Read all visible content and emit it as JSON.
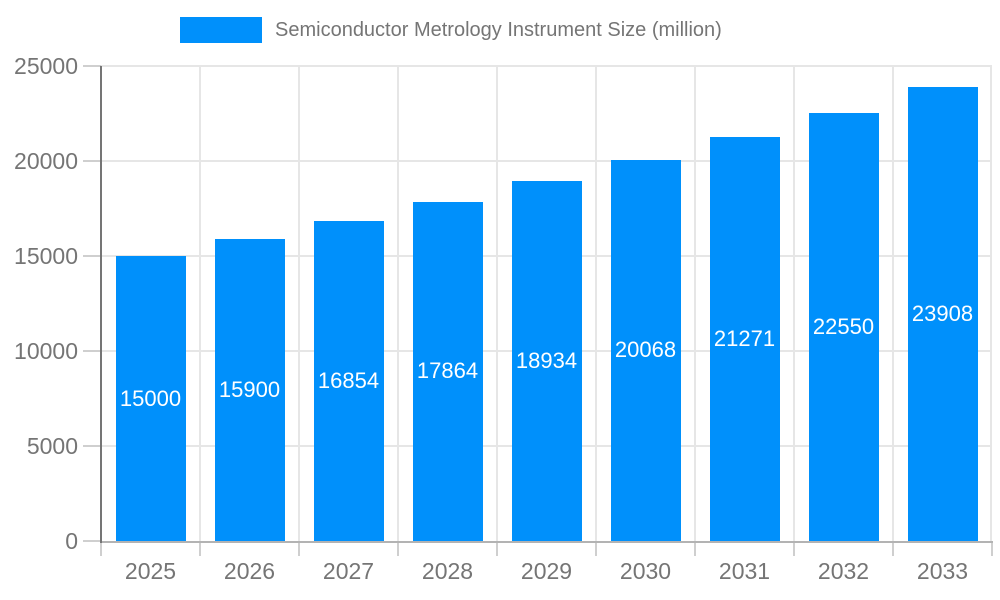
{
  "legend": {
    "label": "Semiconductor Metrology Instrument Size (million)",
    "swatch_color": "#0090FB",
    "position": "top"
  },
  "colors": {
    "background": "#ffffff",
    "bar": "#0090FB",
    "bar_label_text": "#ffffff",
    "axis_text": "#757575",
    "gridline": "#e6e6e6",
    "tick": "#cfcfcf",
    "y_axis_line": "#757575",
    "x_axis_line": "#b3b3b3"
  },
  "chart_data": {
    "type": "bar",
    "title": "Semiconductor Metrology Instrument Size (million)",
    "categories": [
      "2025",
      "2026",
      "2027",
      "2028",
      "2029",
      "2030",
      "2031",
      "2032",
      "2033"
    ],
    "values": [
      15000,
      15900,
      16854,
      17864,
      18934,
      20068,
      21271,
      22550,
      23908
    ],
    "series": [
      {
        "name": "Semiconductor Metrology Instrument Size (million)",
        "values": [
          15000,
          15900,
          16854,
          17864,
          18934,
          20068,
          21271,
          22550,
          23908
        ]
      }
    ],
    "xlabel": "",
    "ylabel": "",
    "ylim": [
      0,
      25000
    ],
    "yticks": [
      0,
      5000,
      10000,
      15000,
      20000,
      25000
    ],
    "grid": true,
    "legend_position": "top",
    "data_labels": "inside-center"
  }
}
